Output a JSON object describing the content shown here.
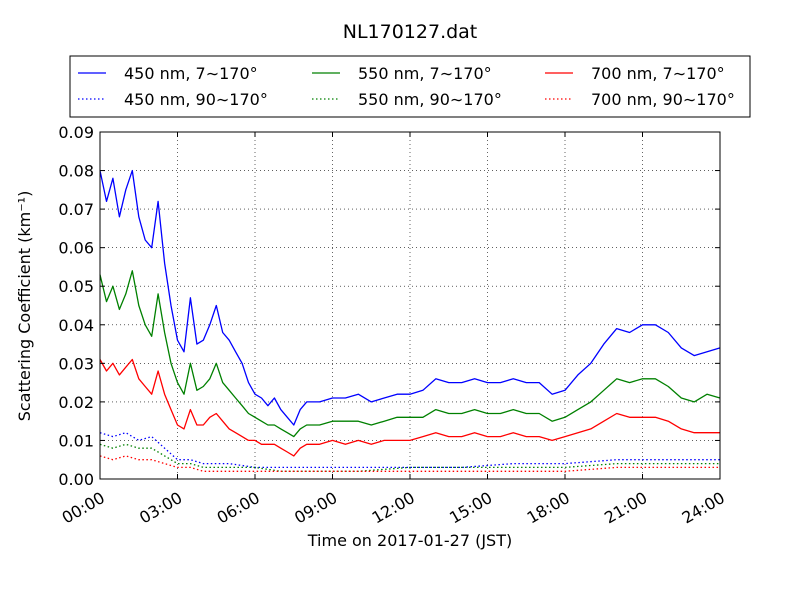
{
  "chart_data": {
    "type": "line",
    "title": "NL170127.dat",
    "xlabel": "Time on 2017-01-27 (JST)",
    "ylabel": "Scattering Coefficient (km⁻¹)",
    "xlim": [
      0,
      24
    ],
    "ylim": [
      0,
      0.09
    ],
    "xticks": [
      0,
      3,
      6,
      9,
      12,
      15,
      18,
      21,
      24
    ],
    "xtick_labels": [
      "00:00",
      "03:00",
      "06:00",
      "09:00",
      "12:00",
      "15:00",
      "18:00",
      "21:00",
      "24:00"
    ],
    "yticks": [
      0,
      0.01,
      0.02,
      0.03,
      0.04,
      0.05,
      0.06,
      0.07,
      0.08,
      0.09
    ],
    "ytick_labels": [
      "0.00",
      "0.01",
      "0.02",
      "0.03",
      "0.04",
      "0.05",
      "0.06",
      "0.07",
      "0.08",
      "0.09"
    ],
    "x_unit": "hours",
    "grid": true,
    "legend_position": "top",
    "series": [
      {
        "name": "450 nm, 7∼170°",
        "color": "#0000ff",
        "style": "solid",
        "x": [
          0,
          0.25,
          0.5,
          0.75,
          1.0,
          1.25,
          1.5,
          1.75,
          2.0,
          2.25,
          2.5,
          2.75,
          3.0,
          3.25,
          3.5,
          3.75,
          4.0,
          4.25,
          4.5,
          4.75,
          5.0,
          5.25,
          5.5,
          5.75,
          6.0,
          6.25,
          6.5,
          6.75,
          7.0,
          7.25,
          7.5,
          7.75,
          8.0,
          8.5,
          9.0,
          9.5,
          10.0,
          10.5,
          11.0,
          11.5,
          12.0,
          12.5,
          13.0,
          13.5,
          14.0,
          14.5,
          15.0,
          15.5,
          16.0,
          16.5,
          17.0,
          17.5,
          18.0,
          18.5,
          19.0,
          19.5,
          20.0,
          20.5,
          21.0,
          21.5,
          22.0,
          22.5,
          23.0,
          23.5,
          24.0
        ],
        "y": [
          0.08,
          0.072,
          0.078,
          0.068,
          0.075,
          0.08,
          0.068,
          0.062,
          0.06,
          0.072,
          0.056,
          0.045,
          0.036,
          0.033,
          0.047,
          0.035,
          0.036,
          0.04,
          0.045,
          0.038,
          0.036,
          0.033,
          0.03,
          0.025,
          0.022,
          0.021,
          0.019,
          0.021,
          0.018,
          0.016,
          0.014,
          0.018,
          0.02,
          0.02,
          0.021,
          0.021,
          0.022,
          0.02,
          0.021,
          0.022,
          0.022,
          0.023,
          0.026,
          0.025,
          0.025,
          0.026,
          0.025,
          0.025,
          0.026,
          0.025,
          0.025,
          0.022,
          0.023,
          0.027,
          0.03,
          0.035,
          0.039,
          0.038,
          0.04,
          0.04,
          0.038,
          0.034,
          0.032,
          0.033,
          0.034
        ]
      },
      {
        "name": "550 nm, 7∼170°",
        "color": "#008000",
        "style": "solid",
        "x": [
          0,
          0.25,
          0.5,
          0.75,
          1.0,
          1.25,
          1.5,
          1.75,
          2.0,
          2.25,
          2.5,
          2.75,
          3.0,
          3.25,
          3.5,
          3.75,
          4.0,
          4.25,
          4.5,
          4.75,
          5.0,
          5.25,
          5.5,
          5.75,
          6.0,
          6.25,
          6.5,
          6.75,
          7.0,
          7.25,
          7.5,
          7.75,
          8.0,
          8.5,
          9.0,
          9.5,
          10.0,
          10.5,
          11.0,
          11.5,
          12.0,
          12.5,
          13.0,
          13.5,
          14.0,
          14.5,
          15.0,
          15.5,
          16.0,
          16.5,
          17.0,
          17.5,
          18.0,
          18.5,
          19.0,
          19.5,
          20.0,
          20.5,
          21.0,
          21.5,
          22.0,
          22.5,
          23.0,
          23.5,
          24.0
        ],
        "y": [
          0.053,
          0.046,
          0.05,
          0.044,
          0.048,
          0.054,
          0.045,
          0.04,
          0.037,
          0.048,
          0.038,
          0.03,
          0.025,
          0.022,
          0.03,
          0.023,
          0.024,
          0.026,
          0.03,
          0.025,
          0.023,
          0.021,
          0.019,
          0.017,
          0.016,
          0.015,
          0.014,
          0.014,
          0.013,
          0.012,
          0.011,
          0.013,
          0.014,
          0.014,
          0.015,
          0.015,
          0.015,
          0.014,
          0.015,
          0.016,
          0.016,
          0.016,
          0.018,
          0.017,
          0.017,
          0.018,
          0.017,
          0.017,
          0.018,
          0.017,
          0.017,
          0.015,
          0.016,
          0.018,
          0.02,
          0.023,
          0.026,
          0.025,
          0.026,
          0.026,
          0.024,
          0.021,
          0.02,
          0.022,
          0.021
        ]
      },
      {
        "name": "700 nm, 7∼170°",
        "color": "#ff0000",
        "style": "solid",
        "x": [
          0,
          0.25,
          0.5,
          0.75,
          1.0,
          1.25,
          1.5,
          1.75,
          2.0,
          2.25,
          2.5,
          2.75,
          3.0,
          3.25,
          3.5,
          3.75,
          4.0,
          4.25,
          4.5,
          4.75,
          5.0,
          5.25,
          5.5,
          5.75,
          6.0,
          6.25,
          6.5,
          6.75,
          7.0,
          7.25,
          7.5,
          7.75,
          8.0,
          8.5,
          9.0,
          9.5,
          10.0,
          10.5,
          11.0,
          11.5,
          12.0,
          12.5,
          13.0,
          13.5,
          14.0,
          14.5,
          15.0,
          15.5,
          16.0,
          16.5,
          17.0,
          17.5,
          18.0,
          18.5,
          19.0,
          19.5,
          20.0,
          20.5,
          21.0,
          21.5,
          22.0,
          22.5,
          23.0,
          23.5,
          24.0
        ],
        "y": [
          0.031,
          0.028,
          0.03,
          0.027,
          0.029,
          0.031,
          0.026,
          0.024,
          0.022,
          0.028,
          0.022,
          0.018,
          0.014,
          0.013,
          0.018,
          0.014,
          0.014,
          0.016,
          0.017,
          0.015,
          0.013,
          0.012,
          0.011,
          0.01,
          0.01,
          0.009,
          0.009,
          0.009,
          0.008,
          0.007,
          0.006,
          0.008,
          0.009,
          0.009,
          0.01,
          0.009,
          0.01,
          0.009,
          0.01,
          0.01,
          0.01,
          0.011,
          0.012,
          0.011,
          0.011,
          0.012,
          0.011,
          0.011,
          0.012,
          0.011,
          0.011,
          0.01,
          0.011,
          0.012,
          0.013,
          0.015,
          0.017,
          0.016,
          0.016,
          0.016,
          0.015,
          0.013,
          0.012,
          0.012,
          0.012
        ]
      },
      {
        "name": "450 nm, 90∼170°",
        "color": "#0000ff",
        "style": "dotted",
        "x": [
          0,
          0.5,
          1.0,
          1.5,
          2.0,
          2.5,
          3.0,
          3.5,
          4.0,
          5.0,
          6.0,
          7.0,
          8.0,
          10.0,
          12.0,
          14.0,
          16.0,
          18.0,
          20.0,
          21.0,
          22.0,
          24.0
        ],
        "y": [
          0.012,
          0.011,
          0.012,
          0.01,
          0.011,
          0.008,
          0.005,
          0.005,
          0.004,
          0.004,
          0.003,
          0.003,
          0.003,
          0.003,
          0.003,
          0.003,
          0.004,
          0.004,
          0.005,
          0.005,
          0.005,
          0.005
        ]
      },
      {
        "name": "550 nm, 90∼170°",
        "color": "#008000",
        "style": "dotted",
        "x": [
          0,
          0.5,
          1.0,
          1.5,
          2.0,
          2.5,
          3.0,
          3.5,
          4.0,
          5.0,
          6.0,
          7.0,
          8.0,
          10.0,
          12.0,
          14.0,
          16.0,
          18.0,
          20.0,
          21.0,
          22.0,
          24.0
        ],
        "y": [
          0.009,
          0.008,
          0.009,
          0.008,
          0.008,
          0.006,
          0.004,
          0.004,
          0.003,
          0.003,
          0.003,
          0.002,
          0.002,
          0.002,
          0.003,
          0.003,
          0.003,
          0.003,
          0.004,
          0.004,
          0.004,
          0.004
        ]
      },
      {
        "name": "700 nm, 90∼170°",
        "color": "#ff0000",
        "style": "dotted",
        "x": [
          0,
          0.5,
          1.0,
          1.5,
          2.0,
          2.5,
          3.0,
          3.5,
          4.0,
          5.0,
          6.0,
          7.0,
          8.0,
          10.0,
          12.0,
          14.0,
          16.0,
          18.0,
          20.0,
          21.0,
          22.0,
          24.0
        ],
        "y": [
          0.006,
          0.005,
          0.006,
          0.005,
          0.005,
          0.004,
          0.003,
          0.003,
          0.002,
          0.002,
          0.002,
          0.002,
          0.002,
          0.002,
          0.002,
          0.002,
          0.002,
          0.002,
          0.003,
          0.003,
          0.003,
          0.003
        ]
      }
    ]
  }
}
